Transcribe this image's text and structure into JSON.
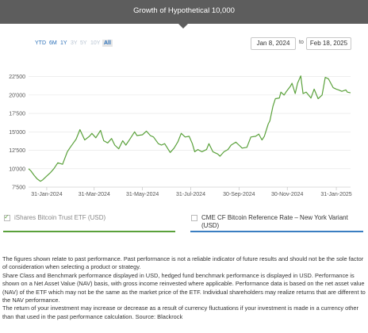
{
  "header": {
    "title": "Growth of Hypothetical 10,000"
  },
  "zoom_buttons": [
    {
      "label": "YTD",
      "state": "enabled"
    },
    {
      "label": "6M",
      "state": "enabled"
    },
    {
      "label": "1Y",
      "state": "enabled"
    },
    {
      "label": "3Y",
      "state": "disabled"
    },
    {
      "label": "5Y",
      "state": "disabled"
    },
    {
      "label": "10Y",
      "state": "disabled"
    },
    {
      "label": "All",
      "state": "selected"
    }
  ],
  "date_range": {
    "from": "Jan 8, 2024",
    "to_label": "to",
    "to": "Feb 18, 2025"
  },
  "chart_data": {
    "type": "line",
    "title": "Growth of Hypothetical 10,000",
    "x_tick_labels": [
      "31-Jan-2024",
      "31-Mar-2024",
      "31-May-2024",
      "31-Jul-2024",
      "30-Sep-2024",
      "30-Nov-2024",
      "31-Jan-2025"
    ],
    "y_tick_labels": [
      "7'500",
      "10'000",
      "12'500",
      "15'000",
      "17'500",
      "20'000",
      "22'500"
    ],
    "y_ticks": [
      7500,
      10000,
      12500,
      15000,
      17500,
      20000,
      22500
    ],
    "ylim": [
      7500,
      23000
    ],
    "xlim": [
      "2024-01-08",
      "2025-02-18"
    ],
    "grid": "horizontal",
    "series": [
      {
        "name": "iShares Bitcoin Trust ETF (USD)",
        "color": "#5aa13b",
        "x": [
          "2024-01-08",
          "2024-01-11",
          "2024-01-15",
          "2024-01-19",
          "2024-01-23",
          "2024-01-26",
          "2024-01-31",
          "2024-02-05",
          "2024-02-09",
          "2024-02-14",
          "2024-02-20",
          "2024-02-26",
          "2024-02-29",
          "2024-03-04",
          "2024-03-08",
          "2024-03-13",
          "2024-03-19",
          "2024-03-25",
          "2024-03-28",
          "2024-04-02",
          "2024-04-08",
          "2024-04-12",
          "2024-04-17",
          "2024-04-22",
          "2024-04-26",
          "2024-05-01",
          "2024-05-06",
          "2024-05-10",
          "2024-05-15",
          "2024-05-21",
          "2024-05-24",
          "2024-05-31",
          "2024-06-05",
          "2024-06-10",
          "2024-06-14",
          "2024-06-20",
          "2024-06-24",
          "2024-06-28",
          "2024-07-05",
          "2024-07-10",
          "2024-07-15",
          "2024-07-19",
          "2024-07-24",
          "2024-07-29",
          "2024-08-02",
          "2024-08-05",
          "2024-08-09",
          "2024-08-14",
          "2024-08-20",
          "2024-08-23",
          "2024-08-28",
          "2024-09-03",
          "2024-09-06",
          "2024-09-11",
          "2024-09-16",
          "2024-09-20",
          "2024-09-26",
          "2024-09-30",
          "2024-10-04",
          "2024-10-10",
          "2024-10-15",
          "2024-10-21",
          "2024-10-25",
          "2024-10-29",
          "2024-11-01",
          "2024-11-06",
          "2024-11-08",
          "2024-11-12",
          "2024-11-15",
          "2024-11-20",
          "2024-11-22",
          "2024-11-26",
          "2024-11-29",
          "2024-12-04",
          "2024-12-06",
          "2024-12-10",
          "2024-12-13",
          "2024-12-17",
          "2024-12-20",
          "2024-12-24",
          "2024-12-30",
          "2025-01-03",
          "2025-01-08",
          "2025-01-13",
          "2025-01-17",
          "2025-01-21",
          "2025-01-27",
          "2025-01-31",
          "2025-02-03",
          "2025-02-07",
          "2025-02-12",
          "2025-02-14",
          "2025-02-18"
        ],
        "values": [
          10000,
          9700,
          9100,
          8600,
          8300,
          8500,
          9000,
          9500,
          10000,
          10800,
          10600,
          12300,
          12800,
          13400,
          14000,
          15300,
          13900,
          14400,
          14800,
          14200,
          15200,
          13800,
          13500,
          14100,
          13200,
          12700,
          13800,
          13200,
          14000,
          15000,
          14500,
          14600,
          15100,
          14500,
          14300,
          13400,
          13200,
          13400,
          12200,
          12800,
          13700,
          14800,
          14300,
          14400,
          13400,
          12300,
          12600,
          12300,
          12600,
          13400,
          12300,
          12000,
          11700,
          12300,
          12600,
          13200,
          13600,
          13200,
          12800,
          12900,
          14300,
          14400,
          14700,
          13900,
          14400,
          16100,
          16500,
          18500,
          19500,
          19600,
          20400,
          20000,
          20500,
          21200,
          21600,
          20200,
          21600,
          22600,
          20200,
          20400,
          19600,
          20800,
          19500,
          20000,
          22400,
          22200,
          21000,
          20800,
          20700,
          20500,
          20700,
          20400,
          20300
        ]
      },
      {
        "name": "CME CF Bitcoin Reference Rate – New York Variant (USD)",
        "color": "#3a7ec1",
        "visible": false
      }
    ]
  },
  "legend": [
    {
      "label": "iShares Bitcoin Trust ETF (USD)",
      "checked": true
    },
    {
      "label": "CME CF Bitcoin Reference Rate – New York Variant (USD)",
      "checked": false
    }
  ],
  "disclaimer": [
    "The figures shown relate to past performance. Past performance is not a reliable indicator of future results and should not be the sole factor of consideration when selecting a product or strategy.",
    "Share Class and Benchmark performance displayed in USD, hedged fund benchmark performance is displayed in USD. Performance is shown on a Net Asset Value (NAV) basis, with gross income reinvested where applicable. Performance data is based on the net asset value (NAV) of the ETF which may not be the same as the market price of the ETF. Individual shareholders may realize returns that are different to the NAV performance.",
    "The return of your investment may increase or decrease as a result of currency fluctuations if your investment is made in a currency other than that used in the past performance calculation. Source: Blackrock"
  ],
  "colors": {
    "banner": "#5d5d5d",
    "accent_link": "#2a6fb8",
    "series_1": "#5aa13b",
    "series_2": "#3a7ec1"
  }
}
